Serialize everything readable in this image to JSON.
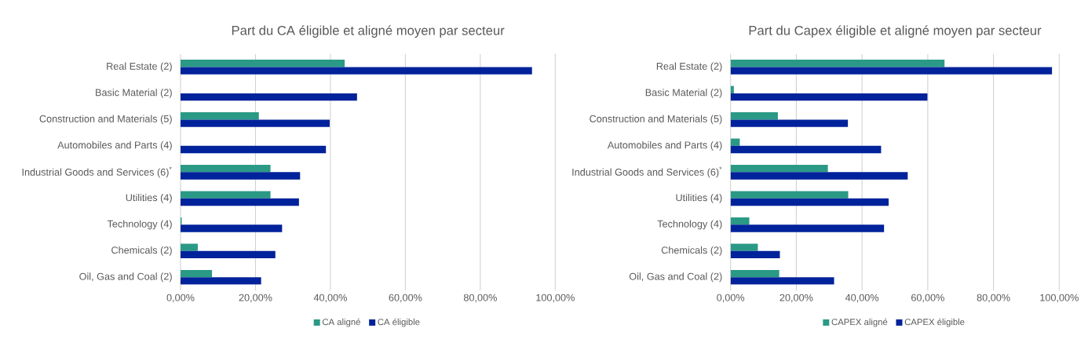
{
  "chart_data": [
    {
      "type": "bar",
      "orientation": "horizontal",
      "title": "Part du CA éligible et aligné moyen par secteur",
      "categories": [
        "Real Estate (2)",
        "Basic Material (2)",
        "Construction and Materials (5)",
        "Automobiles and Parts (4)",
        "Industrial Goods and Services (6)$^{*}$",
        "Utilities (4)",
        "Technology (4)",
        "Chemicals (2)",
        "Oil, Gas and Coal (2)"
      ],
      "series": [
        {
          "name": "CA aligné",
          "color": "#2a9985",
          "values": [
            43.8,
            0,
            20.9,
            0,
            24.0,
            24.0,
            0.3,
            4.6,
            8.4
          ]
        },
        {
          "name": "CA éligible",
          "color": "#00229b",
          "values": [
            93.8,
            47.1,
            39.8,
            38.8,
            31.9,
            31.6,
            27.1,
            25.3,
            21.5
          ]
        }
      ],
      "xlim": [
        0,
        100
      ],
      "xticks": [
        {
          "value": 0,
          "label": "0,00%"
        },
        {
          "value": 20,
          "label": "20,00%"
        },
        {
          "value": 40,
          "label": "40,00%"
        },
        {
          "value": 60,
          "label": "60,00%"
        },
        {
          "value": 80,
          "label": "80,00%"
        },
        {
          "value": 100,
          "label": "100,00%"
        }
      ],
      "grid": "x",
      "legend": "bottom"
    },
    {
      "type": "bar",
      "orientation": "horizontal",
      "title": "Part du Capex éligible et aligné moyen par secteur",
      "categories": [
        "Real Estate (2)",
        "Basic Material (2)",
        "Construction and Materials (5)",
        "Automobiles and Parts (4)",
        "Industrial Goods and Services (6)$^{*}$",
        "Utilities (4)",
        "Technology (4)",
        "Chemicals (2)",
        "Oil, Gas and Coal (2)"
      ],
      "series": [
        {
          "name": "CAPEX aligné",
          "color": "#2a9985",
          "values": [
            65.1,
            1.0,
            14.4,
            2.8,
            29.6,
            35.8,
            5.7,
            8.3,
            14.8
          ]
        },
        {
          "name": "CAPEX éligible",
          "color": "#00229b",
          "values": [
            97.8,
            59.9,
            35.7,
            45.8,
            53.9,
            48.1,
            46.7,
            15.0,
            31.5
          ]
        }
      ],
      "xlim": [
        0,
        100
      ],
      "xticks": [
        {
          "value": 0,
          "label": "0,00%"
        },
        {
          "value": 20,
          "label": "20,00%"
        },
        {
          "value": 40,
          "label": "40,00%"
        },
        {
          "value": 60,
          "label": "60,00%"
        },
        {
          "value": 80,
          "label": "80,00%"
        },
        {
          "value": 100,
          "label": "100,00%"
        }
      ],
      "grid": "x",
      "legend": "bottom"
    }
  ]
}
